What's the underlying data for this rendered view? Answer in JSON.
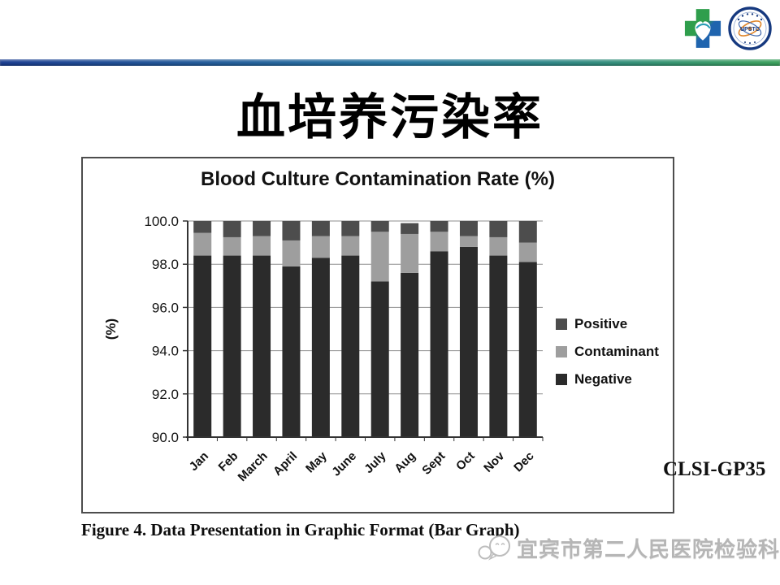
{
  "slide": {
    "title": "血培养污染率",
    "caption": "Figure 4. Data Presentation in Graphic Format (Bar Graph)",
    "reference": "CLSI-GP35",
    "footer": "宜宾市第二人民医院检验科"
  },
  "logos": {
    "cross_logo": "hospital-cross-logo",
    "badge_text": "UPSTC"
  },
  "colors": {
    "rule_blue": "#1d3f92",
    "rule_green": "#3da25e",
    "negative": "#2b2b2b",
    "contaminant": "#9e9e9e",
    "positive": "#4d4d4d",
    "axis": "#333333",
    "gridline": "#8f8f8f"
  },
  "chart_data": {
    "type": "bar",
    "stacked": true,
    "title": "Blood Culture Contamination Rate (%)",
    "xlabel": "",
    "ylabel": "(%)",
    "ylim": [
      90.0,
      100.0
    ],
    "yticks": [
      "90.0",
      "92.0",
      "94.0",
      "96.0",
      "98.0",
      "100.0"
    ],
    "grid": true,
    "legend_position": "right",
    "legend": [
      "Positive",
      "Contaminant",
      "Negative"
    ],
    "categories": [
      "Jan",
      "Feb",
      "March",
      "April",
      "May",
      "June",
      "July",
      "Aug",
      "Sept",
      "Oct",
      "Nov",
      "Dec"
    ],
    "series": [
      {
        "name": "Negative",
        "color": "#2b2b2b",
        "values": [
          98.4,
          98.4,
          98.4,
          97.9,
          98.3,
          98.4,
          97.2,
          97.6,
          98.6,
          98.8,
          98.4,
          98.1
        ]
      },
      {
        "name": "Contaminant",
        "color": "#9e9e9e",
        "values": [
          1.05,
          0.85,
          0.9,
          1.2,
          1.0,
          0.9,
          2.3,
          1.8,
          0.9,
          0.5,
          0.85,
          0.9
        ]
      },
      {
        "name": "Positive",
        "color": "#4d4d4d",
        "values": [
          0.55,
          0.75,
          0.7,
          0.9,
          0.7,
          0.7,
          0.5,
          0.5,
          0.5,
          0.7,
          0.75,
          1.0
        ]
      }
    ]
  }
}
